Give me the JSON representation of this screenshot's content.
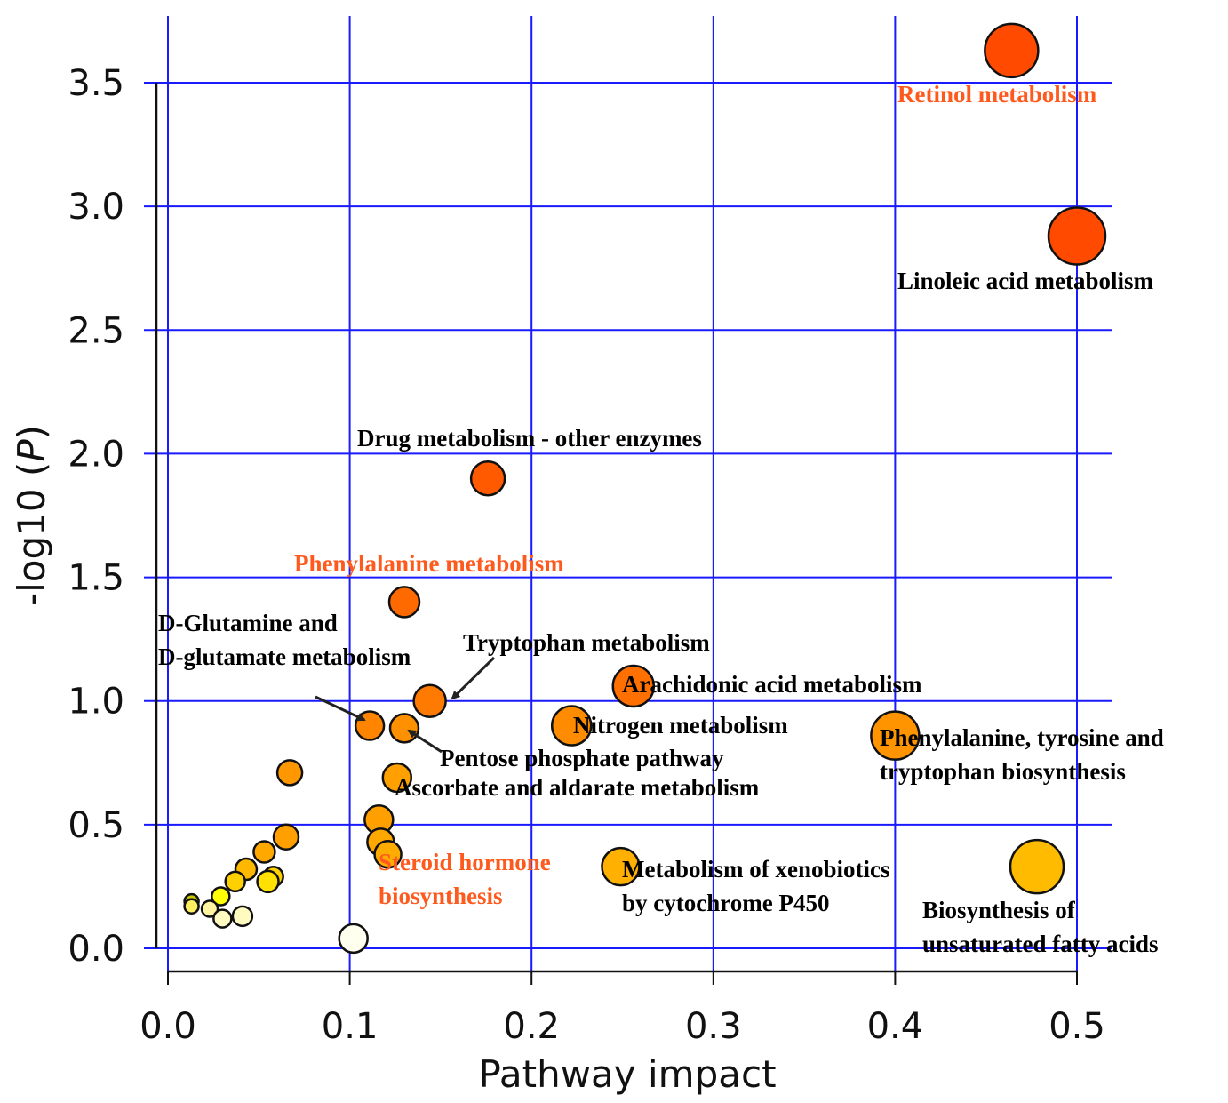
{
  "chart_data": {
    "type": "scatter",
    "title": "",
    "xlabel": "Pathway impact",
    "ylabel": "-log10 (P)",
    "xlim": [
      0,
      0.5
    ],
    "ylim": [
      0,
      3.5
    ],
    "xticks": [
      "0.0",
      "0.1",
      "0.2",
      "0.3",
      "0.4",
      "0.5"
    ],
    "yticks": [
      "0.0",
      "0.5",
      "1.0",
      "1.5",
      "2.0",
      "2.5",
      "3.0",
      "3.5"
    ],
    "grid": true,
    "grid_color": "#1a1aff",
    "note": "",
    "points": [
      {
        "name": "Retinol metabolism",
        "x": 0.464,
        "y": 3.63,
        "size": 30,
        "color": "#ff4a00"
      },
      {
        "name": "Linoleic acid metabolism",
        "x": 0.5,
        "y": 2.88,
        "size": 32,
        "color": "#ff4a00"
      },
      {
        "name": "Drug metabolism - other enzymes",
        "x": 0.176,
        "y": 1.9,
        "size": 19,
        "color": "#ff5a00"
      },
      {
        "name": "Phenylalanine metabolism",
        "x": 0.13,
        "y": 1.4,
        "size": 17,
        "color": "#ff6a00"
      },
      {
        "name": "Tryptophan metabolism",
        "x": 0.144,
        "y": 1.0,
        "size": 18,
        "color": "#ff7a00"
      },
      {
        "name": "Arachidonic acid metabolism",
        "x": 0.256,
        "y": 1.06,
        "size": 23,
        "color": "#ff7000"
      },
      {
        "name": "D-Glutamine and D-glutamate metabolism",
        "x": 0.111,
        "y": 0.9,
        "size": 16,
        "color": "#ff8400"
      },
      {
        "name": "Pentose phosphate pathway",
        "x": 0.13,
        "y": 0.89,
        "size": 16,
        "color": "#ff9000"
      },
      {
        "name": "Nitrogen metabolism",
        "x": 0.222,
        "y": 0.9,
        "size": 22,
        "color": "#ff8c00"
      },
      {
        "name": "Phenylalanine, tyrosine and tryptophan biosynthesis",
        "x": 0.4,
        "y": 0.86,
        "size": 27,
        "color": "#ff9400"
      },
      {
        "name": "Ascorbate and aldarate metabolism",
        "x": 0.126,
        "y": 0.69,
        "size": 16,
        "color": "#ffa000"
      },
      {
        "name": "",
        "x": 0.067,
        "y": 0.71,
        "size": 14,
        "color": "#ff9800"
      },
      {
        "name": "",
        "x": 0.116,
        "y": 0.52,
        "size": 16,
        "color": "#ffa000"
      },
      {
        "name": "",
        "x": 0.117,
        "y": 0.43,
        "size": 15,
        "color": "#ffa800"
      },
      {
        "name": "Steroid hormone biosynthesis",
        "x": 0.121,
        "y": 0.38,
        "size": 15,
        "color": "#ffac00"
      },
      {
        "name": "",
        "x": 0.065,
        "y": 0.45,
        "size": 14,
        "color": "#ffa000"
      },
      {
        "name": "",
        "x": 0.053,
        "y": 0.39,
        "size": 12,
        "color": "#ffa800"
      },
      {
        "name": "",
        "x": 0.043,
        "y": 0.32,
        "size": 12,
        "color": "#ffb800"
      },
      {
        "name": "",
        "x": 0.058,
        "y": 0.29,
        "size": 11,
        "color": "#ffd000"
      },
      {
        "name": "",
        "x": 0.055,
        "y": 0.27,
        "size": 12,
        "color": "#ffe000"
      },
      {
        "name": "",
        "x": 0.037,
        "y": 0.27,
        "size": 11,
        "color": "#ffd000"
      },
      {
        "name": "",
        "x": 0.029,
        "y": 0.21,
        "size": 10,
        "color": "#ffff00"
      },
      {
        "name": "",
        "x": 0.013,
        "y": 0.19,
        "size": 8,
        "color": "#c8c800"
      },
      {
        "name": "",
        "x": 0.013,
        "y": 0.17,
        "size": 8,
        "color": "#ffee60"
      },
      {
        "name": "",
        "x": 0.023,
        "y": 0.16,
        "size": 9,
        "color": "#fff5a0"
      },
      {
        "name": "",
        "x": 0.03,
        "y": 0.12,
        "size": 10,
        "color": "#fffac0"
      },
      {
        "name": "",
        "x": 0.041,
        "y": 0.13,
        "size": 11,
        "color": "#fffac0"
      },
      {
        "name": "",
        "x": 0.102,
        "y": 0.04,
        "size": 16,
        "color": "#fffff0"
      },
      {
        "name": "Metabolism of xenobiotics by cytochrome P450",
        "x": 0.249,
        "y": 0.33,
        "size": 21,
        "color": "#ffb000"
      },
      {
        "name": "Biosynthesis of unsaturated fatty acids",
        "x": 0.478,
        "y": 0.33,
        "size": 30,
        "color": "#ffbb00"
      }
    ],
    "annotations": [
      {
        "lines": [
          "Retinol metabolism"
        ],
        "color": "#ff5a1e"
      },
      {
        "lines": [
          "Linoleic acid metabolism"
        ],
        "color": "#000000"
      },
      {
        "lines": [
          "Drug metabolism - other enzymes"
        ],
        "color": "#000000"
      },
      {
        "lines": [
          "Phenylalanine metabolism"
        ],
        "color": "#ff5a1e"
      },
      {
        "lines": [
          "D-Glutamine and",
          "D-glutamate metabolism"
        ],
        "color": "#000000"
      },
      {
        "lines": [
          "Tryptophan metabolism"
        ],
        "color": "#000000"
      },
      {
        "lines": [
          "Arachidonic acid metabolism"
        ],
        "color": "#000000"
      },
      {
        "lines": [
          "Nitrogen metabolism"
        ],
        "color": "#000000"
      },
      {
        "lines": [
          "Phenylalanine, tyrosine and",
          "tryptophan biosynthesis"
        ],
        "color": "#000000"
      },
      {
        "lines": [
          "Pentose phosphate pathway"
        ],
        "color": "#000000"
      },
      {
        "lines": [
          "Ascorbate and aldarate metabolism"
        ],
        "color": "#000000"
      },
      {
        "lines": [
          "Steroid hormone",
          "biosynthesis"
        ],
        "color": "#ff5a1e"
      },
      {
        "lines": [
          "Metabolism of xenobiotics",
          "by cytochrome P450"
        ],
        "color": "#000000"
      },
      {
        "lines": [
          "Biosynthesis of",
          "unsaturated fatty acids"
        ],
        "color": "#000000"
      }
    ]
  }
}
